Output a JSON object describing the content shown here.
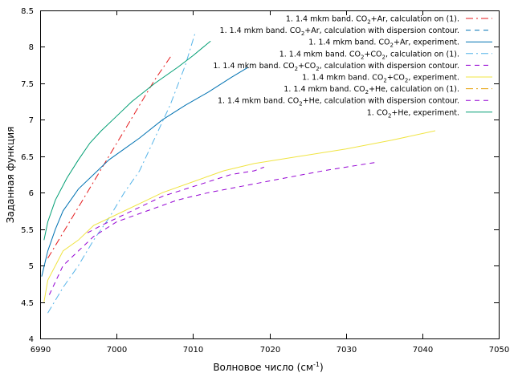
{
  "chart_data": {
    "type": "line",
    "xlabel": "Волновое число (см",
    "xlabel_sup": "-1",
    "xlabel_tail": ")",
    "ylabel": "Заданная функция",
    "xlim": [
      6990,
      7050
    ],
    "ylim": [
      4,
      8.5
    ],
    "xticks": [
      6990,
      7000,
      7010,
      7020,
      7030,
      7040,
      7050
    ],
    "yticks": [
      4,
      4.5,
      5,
      5.5,
      6,
      6.5,
      7,
      7.5,
      8,
      8.5
    ],
    "grid": false,
    "legend_position": "top-right",
    "series": [
      {
        "name": "1. 1.4 mkm band. CO2+Ar, calculation on (1).",
        "legend": {
          "pre": "1. 1.4 mkm band. CO",
          "sub": "2",
          "post": "+Ar, calculation on (1)."
        },
        "color": "#e41a1c",
        "dash": "dashdot",
        "x": [
          6991,
          6993,
          6995,
          6997,
          6999,
          7001,
          7003,
          7005,
          7007.3
        ],
        "y": [
          5.1,
          5.45,
          5.8,
          6.15,
          6.5,
          6.85,
          7.2,
          7.55,
          7.9
        ]
      },
      {
        "name": "1. 1.4 mkm band. CO2+Ar, calculation with dispersion contour.",
        "legend": {
          "pre": "1. 1.4 mkm band. CO",
          "sub": "2",
          "post": "+Ar, calculation with dispersion contour."
        },
        "color": "#0072b2",
        "dash": "dashed",
        "x": [],
        "y": []
      },
      {
        "name": "1. 1.4 mkm band. CO2+Ar, experiment.",
        "legend": {
          "pre": "1. 1.4 mkm band. CO",
          "sub": "2",
          "post": "+Ar, experiment."
        },
        "color": "#0072b2",
        "dash": "solid",
        "x": [
          6990.2,
          6991,
          6992,
          6993,
          6994,
          6995,
          6997,
          6999,
          7001,
          7003,
          7006,
          7009,
          7012,
          7015,
          7017.2
        ],
        "y": [
          4.85,
          5.2,
          5.5,
          5.75,
          5.9,
          6.05,
          6.25,
          6.45,
          6.6,
          6.75,
          7.0,
          7.2,
          7.38,
          7.58,
          7.72
        ]
      },
      {
        "name": "1. 1.4 mkm band. CO2+CO2, calculation on (1).",
        "legend": {
          "pre": "1. 1.4 mkm band. CO",
          "sub": "2",
          "post": "+CO",
          "sub2": "2",
          "post2": ", calculation on (1)."
        },
        "color": "#56b4e9",
        "dash": "dashdot",
        "x": [
          6991,
          6993,
          6995,
          6997,
          6999,
          7001,
          7003,
          7005,
          7007,
          7009,
          7010.3
        ],
        "y": [
          4.35,
          4.7,
          5.0,
          5.35,
          5.65,
          6.0,
          6.3,
          6.75,
          7.2,
          7.75,
          8.2
        ]
      },
      {
        "name": "1. 1.4 mkm band. CO2+CO2, calculation with dispersion contour.",
        "legend": {
          "pre": "1. 1.4 mkm band. CO",
          "sub": "2",
          "post": "+CO",
          "sub2": "2",
          "post2": ", calculation with dispersion contour."
        },
        "color": "#9400d3",
        "dash": "dashed",
        "x": [
          6991.2,
          6993,
          6995,
          6997,
          7000,
          7004,
          7008,
          7012,
          7017,
          7022,
          7027,
          7030,
          7034.2
        ],
        "y": [
          4.6,
          5.0,
          5.2,
          5.4,
          5.6,
          5.75,
          5.9,
          6.0,
          6.1,
          6.2,
          6.3,
          6.35,
          6.42
        ]
      },
      {
        "name": "1. 1.4 mkm band. CO2+CO2, experiment.",
        "legend": {
          "pre": "1. 1.4 mkm band. CO",
          "sub": "2",
          "post": "+CO",
          "sub2": "2",
          "post2": ", experiment."
        },
        "color": "#f0e442",
        "dash": "solid",
        "x": [
          6990.5,
          6991,
          6992,
          6993,
          6995,
          6997,
          7000,
          7003,
          7006,
          7010,
          7014,
          7018,
          7024,
          7030,
          7036,
          7041.7
        ],
        "y": [
          4.5,
          4.8,
          5.0,
          5.2,
          5.35,
          5.55,
          5.7,
          5.85,
          6.0,
          6.15,
          6.3,
          6.4,
          6.5,
          6.6,
          6.72,
          6.85
        ]
      },
      {
        "name": "1. 1.4 mkm band. CO2+He, calculation on (1).",
        "legend": {
          "pre": "1. 1.4 mkm band. CO",
          "sub": "2",
          "post": "+He, calculation on (1)."
        },
        "color": "#e69f00",
        "dash": "dashdot",
        "x": [],
        "y": []
      },
      {
        "name": "1. 1.4 mkm band. CO2+He, calculation with dispersion contour.",
        "legend": {
          "pre": "1. 1.4 mkm band. CO",
          "sub": "2",
          "post": "+He, calculation with dispersion contour."
        },
        "color": "#9400d3",
        "dash": "dashed",
        "x": [
          6996.2,
          6998,
          7000,
          7003,
          7006,
          7009,
          7012,
          7015,
          7018,
          7019.3
        ],
        "y": [
          5.45,
          5.55,
          5.65,
          5.8,
          5.95,
          6.05,
          6.15,
          6.25,
          6.3,
          6.35
        ]
      },
      {
        "name": "1. CO2+He, experiment.",
        "legend": {
          "pre": "1. CO",
          "sub": "2",
          "post": "+He, experiment."
        },
        "color": "#009e73",
        "dash": "solid",
        "x": [
          6990.5,
          6991,
          6992,
          6993.5,
          6995,
          6996.5,
          6998,
          7000,
          7002,
          7005,
          7008,
          7010,
          7012.3
        ],
        "y": [
          5.35,
          5.6,
          5.9,
          6.2,
          6.45,
          6.68,
          6.85,
          7.05,
          7.25,
          7.5,
          7.72,
          7.88,
          8.08
        ]
      }
    ]
  }
}
